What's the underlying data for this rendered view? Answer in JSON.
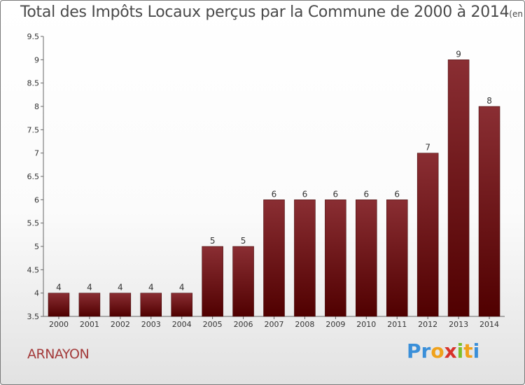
{
  "header": {
    "title": "Total des Impôts Locaux perçus par la Commune de 2000 à 2014",
    "unit": "(en milliers d'€)"
  },
  "footer": {
    "commune": "ARNAYON",
    "logo_letters": [
      {
        "ch": "P",
        "color": "#3a8fd9"
      },
      {
        "ch": "r",
        "color": "#3a8fd9"
      },
      {
        "ch": "o",
        "color": "#f0a21c"
      },
      {
        "ch": "x",
        "color": "#d8322a"
      },
      {
        "ch": "i",
        "color": "#7cbf2a"
      },
      {
        "ch": "t",
        "color": "#f0a21c"
      },
      {
        "ch": "i",
        "color": "#3a8fd9"
      }
    ]
  },
  "chart_data": {
    "type": "bar",
    "title": "Total des Impôts Locaux perçus par la Commune de 2000 à 2014",
    "subtitle": "(en milliers d'€)",
    "categories": [
      "2000",
      "2001",
      "2002",
      "2003",
      "2004",
      "2005",
      "2006",
      "2007",
      "2008",
      "2009",
      "2010",
      "2011",
      "2012",
      "2013",
      "2014"
    ],
    "values": [
      4,
      4,
      4,
      4,
      4,
      5,
      5,
      6,
      6,
      6,
      6,
      6,
      7,
      9,
      8
    ],
    "ylim": [
      3.5,
      9.5
    ],
    "yticks": [
      "3.5",
      "4",
      "4.5",
      "5",
      "5.5",
      "6",
      "6.5",
      "7",
      "7.5",
      "8",
      "8.5",
      "9",
      "9.5"
    ],
    "grid": false,
    "colors": {
      "bar_top": "#8a2e33",
      "bar_bottom": "#500000",
      "axis": "#666666"
    }
  }
}
